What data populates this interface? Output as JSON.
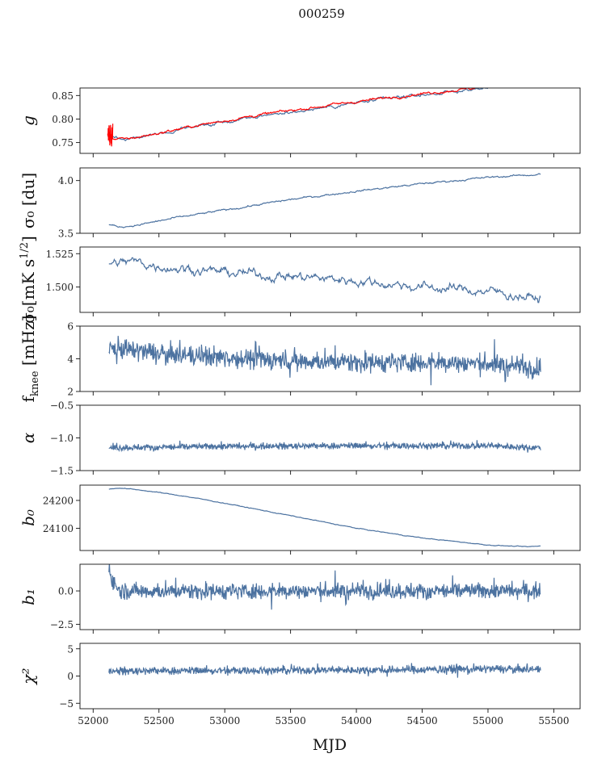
{
  "figure": {
    "title": "000259"
  },
  "chart_data": {
    "type": "line",
    "xlabel": "MJD",
    "xlim": [
      51900,
      55700
    ],
    "xticks": [
      52000,
      52500,
      53000,
      53500,
      54000,
      54500,
      55000,
      55500
    ],
    "x_range_data": [
      52120,
      55400
    ],
    "panels": [
      {
        "name": "g",
        "ylabel": "g",
        "ylim": [
          0.727,
          0.866
        ],
        "yticks": [
          {
            "v": 0.75,
            "t": "0.75"
          },
          {
            "v": 0.8,
            "t": "0.80"
          },
          {
            "v": 0.85,
            "t": "0.85"
          }
        ],
        "series": [
          {
            "color": "#4c72a0",
            "kind": "smooth",
            "points": [
              [
                52120,
                0.77
              ],
              [
                52160,
                0.76
              ],
              [
                52250,
                0.757
              ],
              [
                52500,
                0.768
              ],
              [
                52800,
                0.785
              ],
              [
                53200,
                0.803
              ],
              [
                53600,
                0.819
              ],
              [
                54000,
                0.834
              ],
              [
                54400,
                0.848
              ],
              [
                54800,
                0.86
              ],
              [
                55000,
                0.866
              ]
            ],
            "noise": 0.0015
          },
          {
            "color": "#ff0000",
            "kind": "smooth",
            "points": [
              [
                52120,
                0.765
              ],
              [
                52160,
                0.758
              ],
              [
                52250,
                0.757
              ],
              [
                52500,
                0.77
              ],
              [
                52800,
                0.787
              ],
              [
                53200,
                0.806
              ],
              [
                53600,
                0.822
              ],
              [
                54000,
                0.837
              ],
              [
                54400,
                0.851
              ],
              [
                54800,
                0.863
              ],
              [
                54900,
                0.866
              ]
            ],
            "noise": 0.0012,
            "spike": {
              "x0": 52110,
              "x1": 52150,
              "lo": 0.74,
              "hi": 0.792
            }
          }
        ]
      },
      {
        "name": "sigma0-du",
        "ylabel": "σ₀ [du]",
        "ylim": [
          3.5,
          4.12
        ],
        "yticks": [
          {
            "v": 3.5,
            "t": "3.5"
          },
          {
            "v": 4.0,
            "t": "4.0"
          }
        ],
        "series": [
          {
            "color": "#4c72a0",
            "kind": "smooth",
            "points": [
              [
                52120,
                3.58
              ],
              [
                52200,
                3.56
              ],
              [
                52350,
                3.58
              ],
              [
                52600,
                3.64
              ],
              [
                53000,
                3.72
              ],
              [
                53500,
                3.82
              ],
              [
                54000,
                3.9
              ],
              [
                54500,
                3.97
              ],
              [
                55000,
                4.03
              ],
              [
                55400,
                4.06
              ]
            ],
            "noise": 0.004
          }
        ]
      },
      {
        "name": "sigma0-mK",
        "ylabel": "σ₀[mK s^1/2]",
        "ylim": [
          1.481,
          1.53
        ],
        "yticks": [
          {
            "v": 1.5,
            "t": "1.500"
          },
          {
            "v": 1.525,
            "t": "1.525"
          }
        ],
        "series": [
          {
            "color": "#4c72a0",
            "kind": "smooth",
            "points": [
              [
                52120,
                1.518
              ],
              [
                52300,
                1.519
              ],
              [
                52500,
                1.516
              ],
              [
                53000,
                1.511
              ],
              [
                53500,
                1.508
              ],
              [
                54000,
                1.505
              ],
              [
                54500,
                1.5
              ],
              [
                55000,
                1.497
              ],
              [
                55400,
                1.491
              ]
            ],
            "noise": 0.0016
          }
        ]
      },
      {
        "name": "fknee",
        "ylabel": "f_knee [mHz]",
        "ylim": [
          2,
          6
        ],
        "yticks": [
          {
            "v": 2,
            "t": "2"
          },
          {
            "v": 4,
            "t": "4"
          },
          {
            "v": 6,
            "t": "6"
          }
        ],
        "series": [
          {
            "color": "#4c72a0",
            "kind": "noisy",
            "points": [
              [
                52120,
                4.7
              ],
              [
                52500,
                4.3
              ],
              [
                53000,
                4.1
              ],
              [
                53500,
                3.9
              ],
              [
                54000,
                3.8
              ],
              [
                54500,
                3.8
              ],
              [
                55000,
                3.7
              ],
              [
                55400,
                3.4
              ]
            ],
            "noise": 0.55
          }
        ]
      },
      {
        "name": "alpha",
        "ylabel": "α",
        "ylim": [
          -1.5,
          -0.5
        ],
        "yticks": [
          {
            "v": -1.5,
            "t": "−1.5"
          },
          {
            "v": -1.0,
            "t": "−1.0"
          },
          {
            "v": -0.5,
            "t": "−0.5"
          }
        ],
        "series": [
          {
            "color": "#4c72a0",
            "kind": "noisy",
            "points": [
              [
                52120,
                -1.15
              ],
              [
                53000,
                -1.13
              ],
              [
                54000,
                -1.12
              ],
              [
                55000,
                -1.12
              ],
              [
                55400,
                -1.15
              ]
            ],
            "noise": 0.045
          }
        ]
      },
      {
        "name": "b0",
        "ylabel": "b₀",
        "ylim": [
          24020,
          24255
        ],
        "yticks": [
          {
            "v": 24100,
            "t": "24100"
          },
          {
            "v": 24200,
            "t": "24200"
          }
        ],
        "series": [
          {
            "color": "#4c72a0",
            "kind": "smooth",
            "points": [
              [
                52120,
                24240
              ],
              [
                52200,
                24245
              ],
              [
                52400,
                24235
              ],
              [
                52700,
                24215
              ],
              [
                53000,
                24190
              ],
              [
                53500,
                24145
              ],
              [
                54000,
                24100
              ],
              [
                54500,
                24065
              ],
              [
                55000,
                24040
              ],
              [
                55300,
                24033
              ],
              [
                55400,
                24036
              ]
            ],
            "noise": 0.6
          }
        ]
      },
      {
        "name": "b1",
        "ylabel": "b₁",
        "ylim": [
          -2.9,
          2.0
        ],
        "yticks": [
          {
            "v": -2.5,
            "t": "−2.5"
          },
          {
            "v": 0.0,
            "t": "0.0"
          }
        ],
        "series": [
          {
            "color": "#4c72a0",
            "kind": "noisy",
            "points": [
              [
                52120,
                1.8
              ],
              [
                52140,
                0.9
              ],
              [
                52200,
                0.0
              ],
              [
                53000,
                0.0
              ],
              [
                54000,
                0.0
              ],
              [
                55000,
                0.0
              ],
              [
                55400,
                0.0
              ]
            ],
            "noise": 0.55
          }
        ]
      },
      {
        "name": "chi2",
        "ylabel": "χ²",
        "ylim": [
          -6,
          6
        ],
        "yticks": [
          {
            "v": -5,
            "t": "−5"
          },
          {
            "v": 0,
            "t": "0"
          },
          {
            "v": 5,
            "t": "5"
          }
        ],
        "series": [
          {
            "color": "#4c72a0",
            "kind": "noisy",
            "points": [
              [
                52120,
                0.9
              ],
              [
                53000,
                1.0
              ],
              [
                54000,
                1.1
              ],
              [
                55000,
                1.3
              ],
              [
                55400,
                1.2
              ]
            ],
            "noise": 0.65
          }
        ]
      }
    ]
  }
}
